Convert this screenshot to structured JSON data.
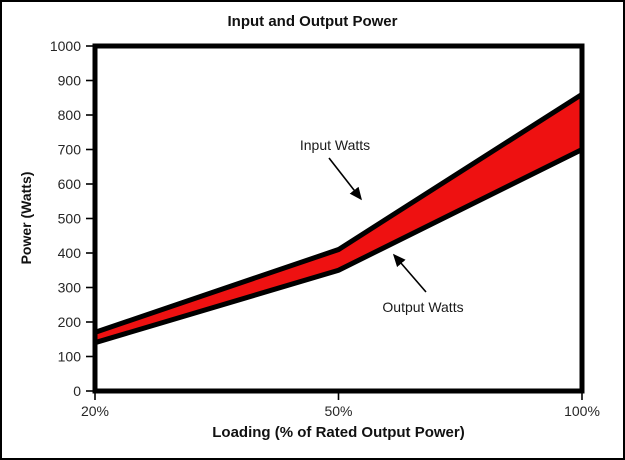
{
  "chart_data": {
    "type": "area",
    "title": "Input and Output Power",
    "xlabel": "Loading (% of Rated Output Power)",
    "ylabel": "Power (Watts)",
    "categories": [
      "20%",
      "50%",
      "100%"
    ],
    "series": [
      {
        "name": "Input Watts",
        "values": [
          170,
          410,
          860
        ]
      },
      {
        "name": "Output Watts",
        "values": [
          140,
          350,
          700
        ]
      }
    ],
    "fill_between": {
      "between": [
        "Input Watts",
        "Output Watts"
      ],
      "color": "#EE1111"
    },
    "line_color": "#000000",
    "axis_color": "#000000",
    "ylim": [
      0,
      1000
    ],
    "yticks": [
      0,
      100,
      200,
      300,
      400,
      500,
      600,
      700,
      800,
      900,
      1000
    ],
    "grid": false,
    "legend_position": "none",
    "annotations": [
      {
        "text": "Input Watts",
        "target_series": "Input Watts"
      },
      {
        "text": "Output Watts",
        "target_series": "Output Watts"
      }
    ]
  }
}
